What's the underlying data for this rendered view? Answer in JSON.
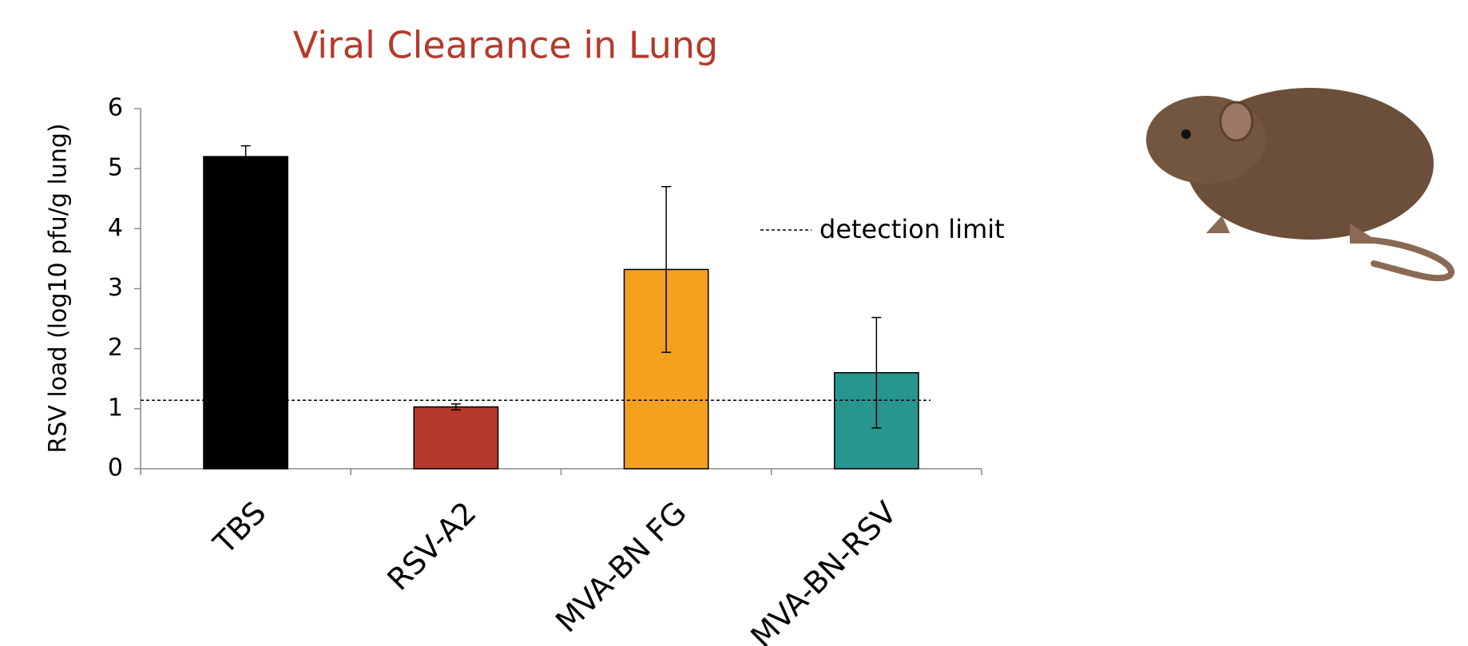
{
  "chart_data": {
    "type": "bar",
    "title": "Viral Clearance in Lung",
    "y_label": "RSV load (log10 pfu/g lung)",
    "categories": [
      "TBS",
      "RSV-A2",
      "MVA-BN FG",
      "MVA-BN-RSV"
    ],
    "values": [
      5.2,
      1.03,
      3.32,
      1.6
    ],
    "errors": [
      0.18,
      0.05,
      1.38,
      0.92
    ],
    "colors": [
      "#000000",
      "#b5392a",
      "#f5a01f",
      "#26968f"
    ],
    "ylim": [
      0,
      6
    ],
    "yticks": [
      0,
      1,
      2,
      3,
      4,
      5,
      6
    ],
    "reference_line": {
      "label": "detection limit",
      "value": 1.14
    }
  }
}
